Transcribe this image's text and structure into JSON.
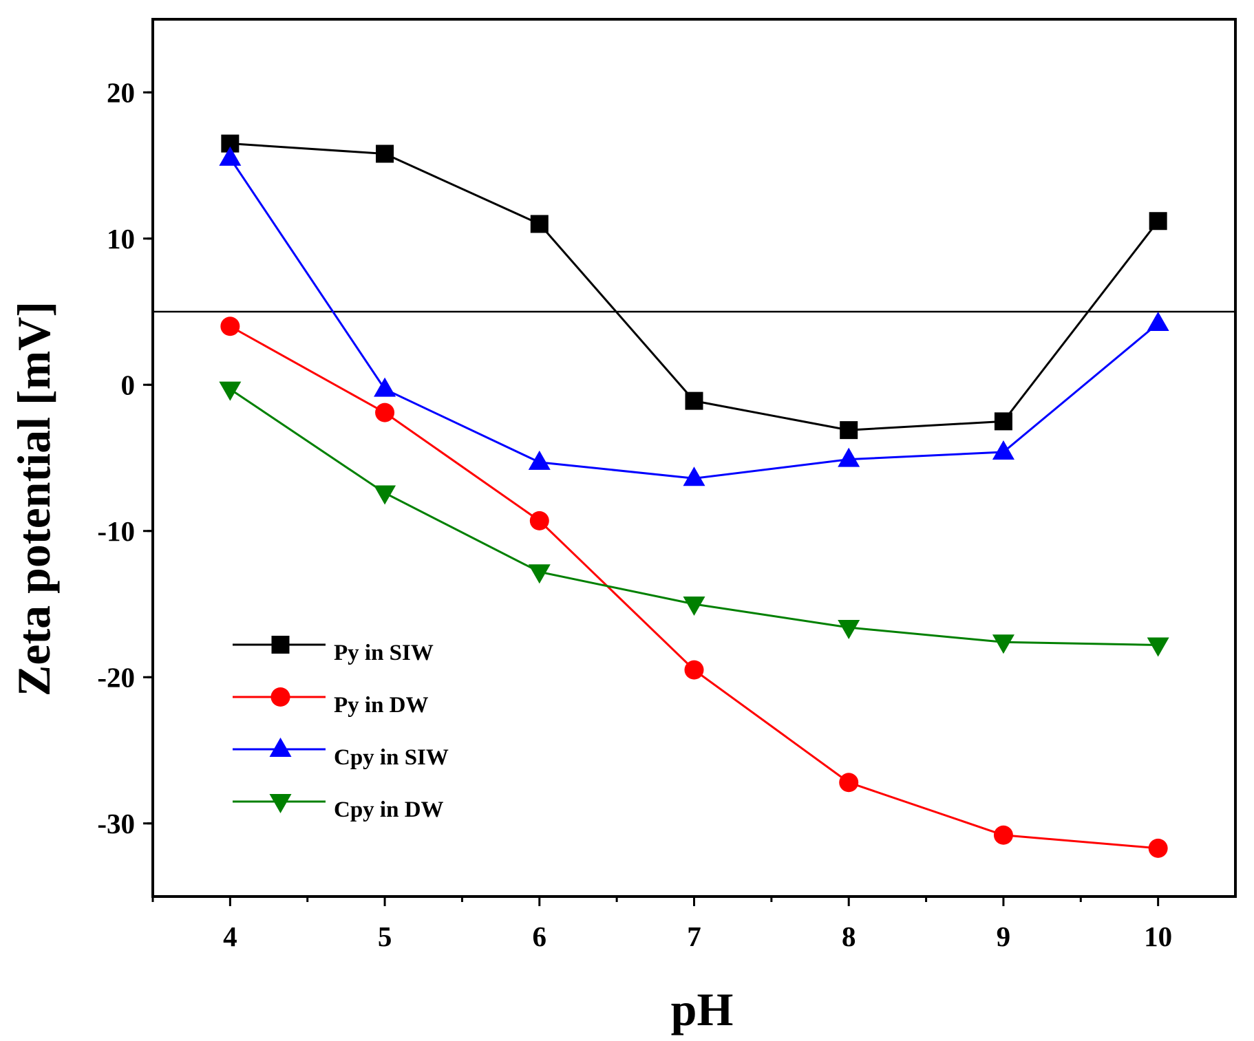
{
  "chart_data": {
    "type": "line",
    "title": "",
    "xlabel": "pH",
    "ylabel": "Zeta potential [mV]",
    "xlim": [
      3.5,
      10.5
    ],
    "ylim": [
      -35,
      25
    ],
    "x_ticks": [
      4,
      5,
      6,
      7,
      8,
      9,
      10
    ],
    "y_ticks": [
      -30,
      -20,
      -10,
      0,
      10,
      20
    ],
    "x_tick_labels": [
      "4",
      "5",
      "6",
      "7",
      "8",
      "9",
      "10"
    ],
    "y_tick_labels": [
      "-30",
      "-20",
      "-10",
      "0",
      "10",
      "20"
    ],
    "reference_line_y": 5,
    "grid": false,
    "legend_position": "bottom-left",
    "x": [
      4,
      5,
      6,
      7,
      8,
      9,
      10
    ],
    "series": [
      {
        "name": "Py in SIW",
        "color": "#000000",
        "marker": "square",
        "values": [
          16.5,
          15.8,
          11.0,
          -1.1,
          -3.1,
          -2.5,
          11.2
        ]
      },
      {
        "name": "Py in DW",
        "color": "#ff0000",
        "marker": "circle",
        "values": [
          4.0,
          -1.9,
          -9.3,
          -19.5,
          -27.2,
          -30.8,
          -31.7
        ]
      },
      {
        "name": "Cpy in SIW",
        "color": "#0000ff",
        "marker": "triangle-up",
        "values": [
          15.5,
          -0.3,
          -5.3,
          -6.4,
          -5.1,
          -4.6,
          4.2
        ]
      },
      {
        "name": "Cpy in DW",
        "color": "#008000",
        "marker": "triangle-down",
        "values": [
          -0.3,
          -7.4,
          -12.8,
          -15.0,
          -16.6,
          -17.6,
          -17.8
        ]
      }
    ]
  }
}
